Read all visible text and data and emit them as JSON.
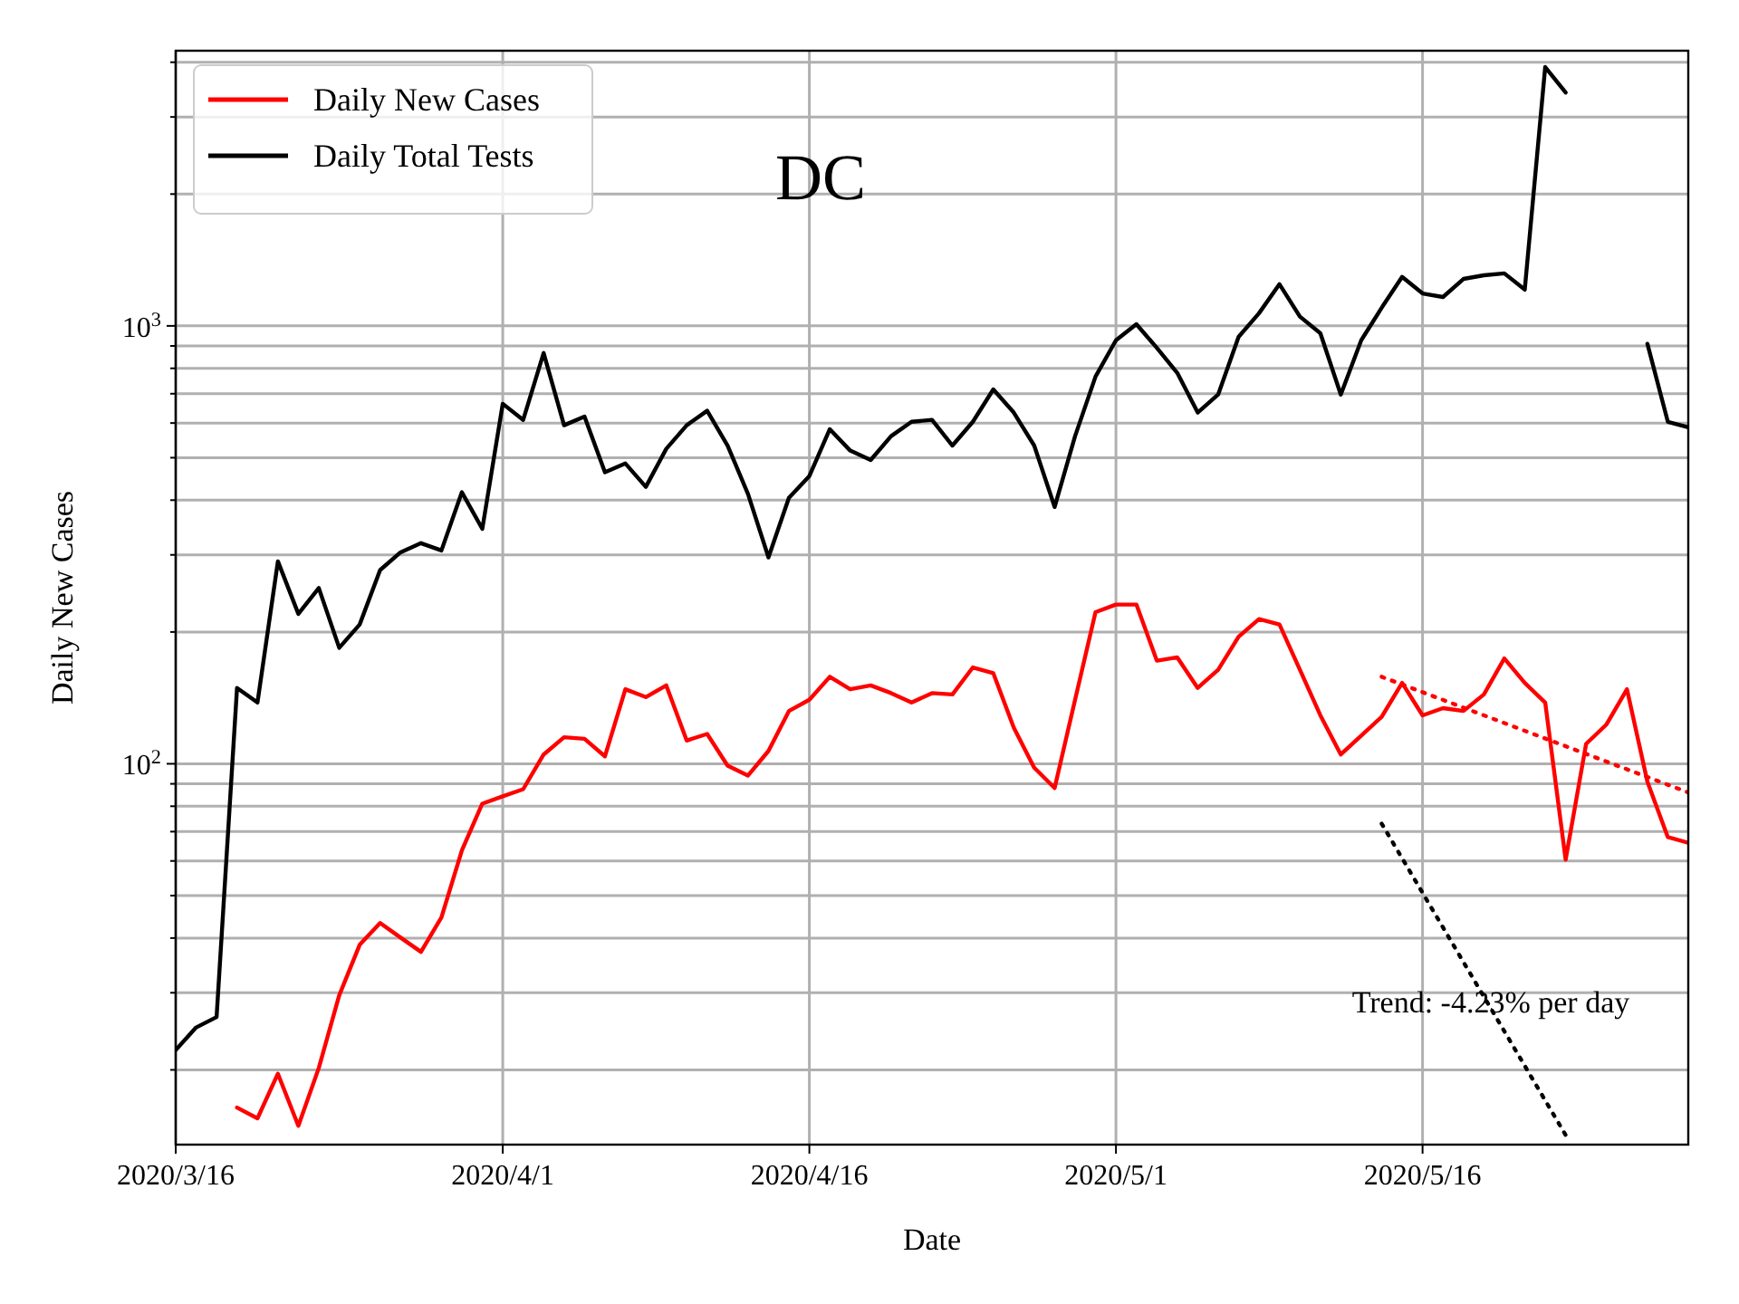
{
  "chart_data": {
    "type": "line",
    "title": "DC",
    "xlabel": "Date",
    "ylabel": "Daily New Cases",
    "x": [
      "2020-03-16",
      "2020-03-17",
      "2020-03-18",
      "2020-03-19",
      "2020-03-20",
      "2020-03-21",
      "2020-03-22",
      "2020-03-23",
      "2020-03-24",
      "2020-03-25",
      "2020-03-26",
      "2020-03-27",
      "2020-03-28",
      "2020-03-29",
      "2020-03-30",
      "2020-03-31",
      "2020-04-01",
      "2020-04-02",
      "2020-04-03",
      "2020-04-04",
      "2020-04-05",
      "2020-04-06",
      "2020-04-07",
      "2020-04-08",
      "2020-04-09",
      "2020-04-10",
      "2020-04-11",
      "2020-04-12",
      "2020-04-13",
      "2020-04-14",
      "2020-04-15",
      "2020-04-16",
      "2020-04-17",
      "2020-04-18",
      "2020-04-19",
      "2020-04-20",
      "2020-04-21",
      "2020-04-22",
      "2020-04-23",
      "2020-04-24",
      "2020-04-25",
      "2020-04-26",
      "2020-04-27",
      "2020-04-28",
      "2020-04-29",
      "2020-04-30",
      "2020-05-01",
      "2020-05-02",
      "2020-05-03",
      "2020-05-04",
      "2020-05-05",
      "2020-05-06",
      "2020-05-07",
      "2020-05-08",
      "2020-05-09",
      "2020-05-10",
      "2020-05-11",
      "2020-05-12",
      "2020-05-13",
      "2020-05-14",
      "2020-05-15",
      "2020-05-16",
      "2020-05-17",
      "2020-05-18",
      "2020-05-19",
      "2020-05-20",
      "2020-05-21",
      "2020-05-22",
      "2020-05-23",
      "2020-05-24",
      "2020-05-25",
      "2020-05-26",
      "2020-05-27",
      "2020-05-28",
      "2020-05-29"
    ],
    "series": [
      {
        "name": "Daily New Cases",
        "color": "#ff0000",
        "values": [
          null,
          null,
          null,
          16.4,
          15.5,
          19.6,
          14.9,
          20.2,
          29.6,
          38.6,
          43.3,
          40.1,
          37.2,
          44.6,
          63.4,
          81.1,
          84.3,
          87.5,
          105,
          115,
          114,
          104,
          148,
          142,
          151,
          113,
          117,
          99,
          94,
          107,
          132,
          140,
          158,
          148,
          151,
          145,
          138,
          145,
          144,
          166,
          161,
          121,
          98,
          88,
          140,
          222,
          231,
          231,
          172,
          175,
          149,
          164,
          195,
          214,
          208,
          164,
          129,
          105,
          116,
          128,
          153,
          129,
          134,
          132,
          144,
          174,
          153,
          138,
          60.4,
          111,
          123,
          148,
          91,
          68,
          66
        ]
      },
      {
        "name": "Daily Total Tests",
        "color": "#000000",
        "values": [
          22.2,
          25,
          26.4,
          149,
          138,
          290,
          220,
          252,
          184,
          208,
          277,
          304,
          319,
          307,
          417,
          344,
          664,
          610,
          867,
          593,
          621,
          463,
          485,
          429,
          524,
          593,
          640,
          533,
          413,
          296,
          405,
          454,
          581,
          519,
          494,
          560,
          604,
          610,
          533,
          604,
          716,
          634,
          533,
          386,
          560,
          766,
          927,
          1009,
          891,
          781,
          634,
          697,
          944,
          1069,
          1245,
          1050,
          962,
          697,
          927,
          1100,
          1294,
          1186,
          1164,
          1280,
          1305,
          1318,
          1210,
          3900,
          3410,
          null,
          null,
          null,
          910,
          604,
          587
        ]
      },
      {
        "type": "line",
        "color": "#ff0000",
        "line_style": "dotted",
        "x": [
          "2020-05-14",
          "2020-05-29"
        ],
        "values": [
          158,
          86
        ]
      },
      {
        "type": "line",
        "color": "#000000",
        "line_style": "dotted",
        "x": [
          "2020-05-14",
          "2020-05-23"
        ],
        "values": [
          73,
          14.2
        ]
      }
    ],
    "log": "y",
    "xlim": [
      "2020-03-16",
      "2020-05-29"
    ],
    "ylim": [
      13.5,
      4250
    ],
    "xticks": [
      {
        "value": "2020-03-16",
        "label": "2020/3/16"
      },
      {
        "value": "2020-04-01",
        "label": "2020/4/1"
      },
      {
        "value": "2020-04-16",
        "label": "2020/4/16"
      },
      {
        "value": "2020-05-01",
        "label": "2020/5/1"
      },
      {
        "value": "2020-05-16",
        "label": "2020/5/16"
      }
    ],
    "yticks": [
      {
        "value": 20,
        "label": null
      },
      {
        "value": 30,
        "label": null
      },
      {
        "value": 40,
        "label": null
      },
      {
        "value": 50,
        "label": null
      },
      {
        "value": 60,
        "label": null
      },
      {
        "value": 70,
        "label": null
      },
      {
        "value": 80,
        "label": null
      },
      {
        "value": 90,
        "label": null
      },
      {
        "value": 100,
        "label": "10$^{2}$"
      },
      {
        "value": 200,
        "label": null
      },
      {
        "value": 300,
        "label": null
      },
      {
        "value": 400,
        "label": null
      },
      {
        "value": 500,
        "label": null
      },
      {
        "value": 600,
        "label": null
      },
      {
        "value": 700,
        "label": null
      },
      {
        "value": 800,
        "label": null
      },
      {
        "value": 900,
        "label": null
      },
      {
        "value": 1000,
        "label": "10$^{3}$"
      },
      {
        "value": 2000,
        "label": null
      },
      {
        "value": 3000,
        "label": null
      },
      {
        "value": 4000,
        "label": null
      }
    ],
    "grid": true,
    "legend": "top left",
    "annotations": [
      "Trend: -4.23% per day"
    ]
  }
}
